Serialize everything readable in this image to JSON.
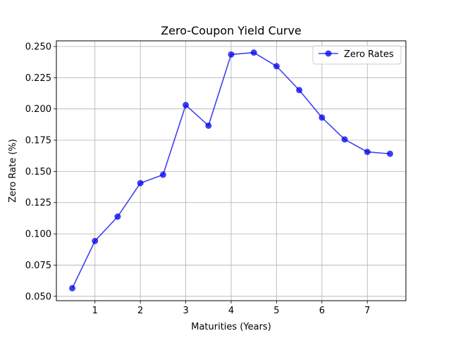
{
  "chart_data": {
    "type": "line",
    "title": "Zero-Coupon Yield Curve",
    "xlabel": "Maturities (Years)",
    "ylabel": "Zero Rate (%)",
    "xlim": [
      0.15,
      7.85
    ],
    "ylim": [
      0.0465,
      0.2545
    ],
    "xticks": [
      1,
      2,
      3,
      4,
      5,
      6,
      7
    ],
    "xtick_labels": [
      "1",
      "2",
      "3",
      "4",
      "5",
      "6",
      "7"
    ],
    "yticks": [
      0.05,
      0.075,
      0.1,
      0.125,
      0.15,
      0.175,
      0.2,
      0.225,
      0.25
    ],
    "ytick_labels": [
      "0.050",
      "0.075",
      "0.100",
      "0.125",
      "0.150",
      "0.175",
      "0.200",
      "0.225",
      "0.250"
    ],
    "grid": true,
    "legend_position": "top-right",
    "series": [
      {
        "name": "Zero Rates",
        "color": "#0000ee",
        "marker": "circle",
        "x": [
          0.5,
          1.0,
          1.5,
          2.0,
          2.5,
          3.0,
          3.5,
          4.0,
          4.5,
          5.0,
          5.5,
          6.0,
          6.5,
          7.0,
          7.5
        ],
        "y": [
          0.0565,
          0.0943,
          0.1138,
          0.1406,
          0.1473,
          0.2031,
          0.1866,
          0.2436,
          0.2451,
          0.2342,
          0.2151,
          0.1931,
          0.1756,
          0.1656,
          0.1641
        ]
      }
    ]
  }
}
